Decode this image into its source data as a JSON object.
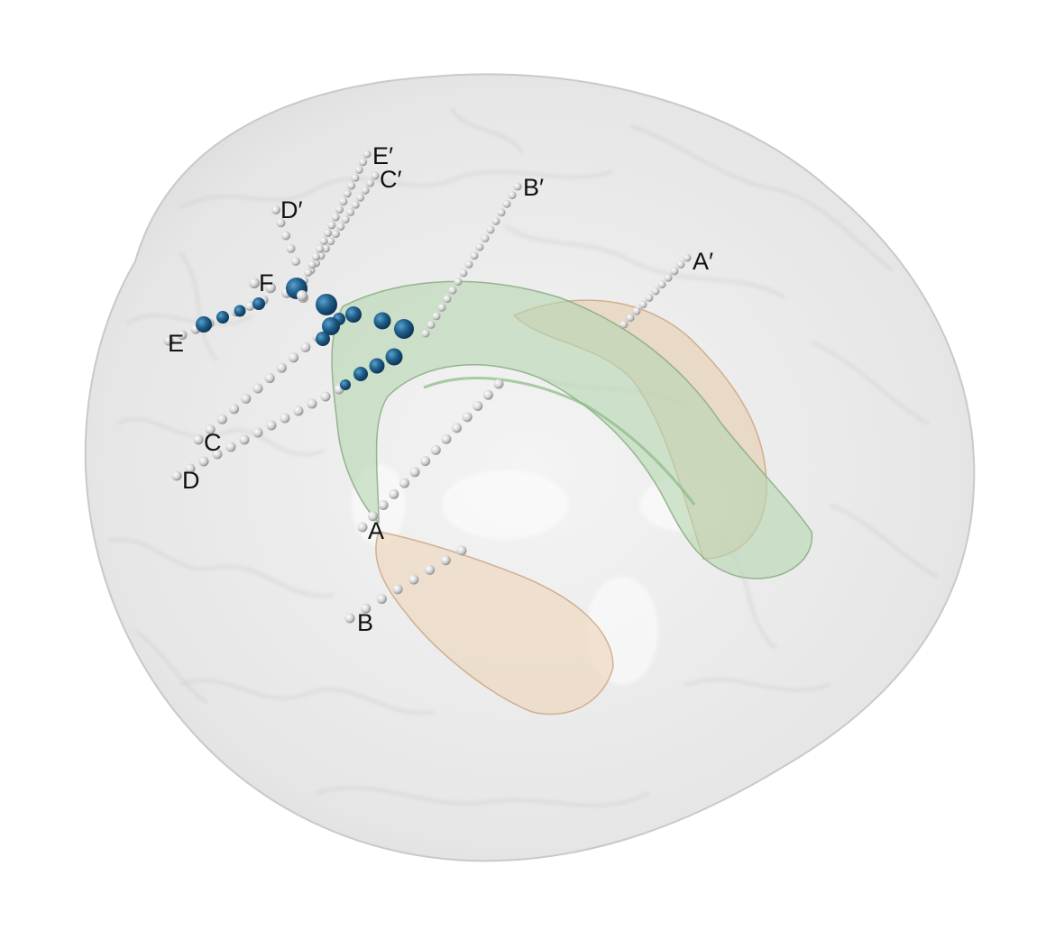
{
  "figure": {
    "electrode_labels": {
      "A": "A",
      "A_prime": "A′",
      "B": "B",
      "B_prime": "B′",
      "C": "C",
      "C_prime": "C′",
      "D": "D",
      "D_prime": "D′",
      "E": "E",
      "E_prime": "E′",
      "F": "F"
    },
    "colors": {
      "background": "#ffffff",
      "brain_surface": "#d9d9d9",
      "green_region": "#8fbf8a",
      "tan_region": "#d9b894",
      "contact_default": "#d8d8d8",
      "contact_highlight": "#1f5f8b"
    }
  }
}
